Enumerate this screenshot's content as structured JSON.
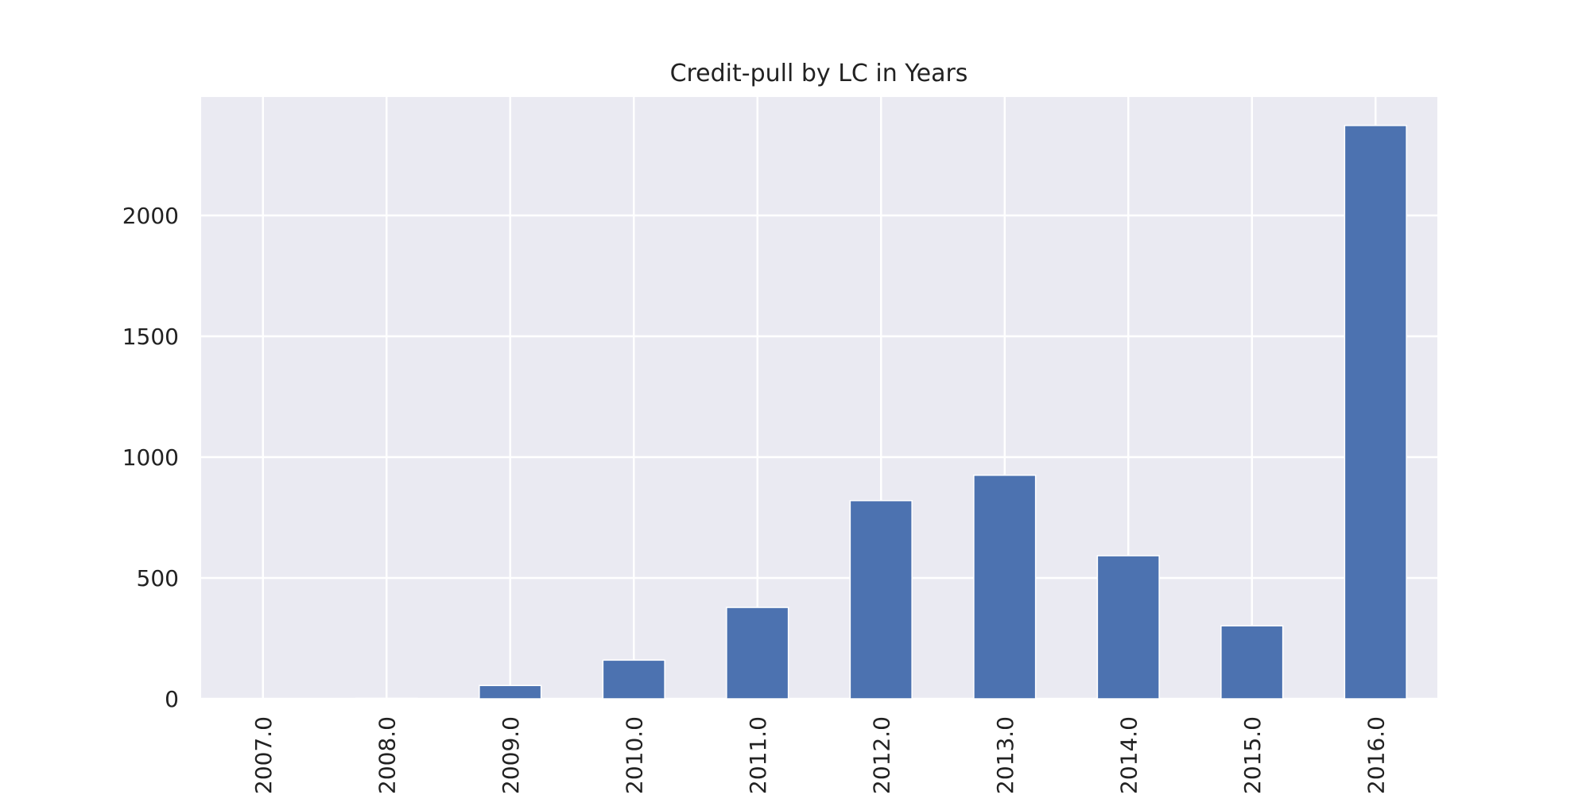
{
  "chart_data": {
    "type": "bar",
    "title": "Credit-pull by LC in Years",
    "xlabel": "",
    "ylabel": "",
    "categories": [
      "2007.0",
      "2008.0",
      "2009.0",
      "2010.0",
      "2011.0",
      "2012.0",
      "2013.0",
      "2014.0",
      "2015.0",
      "2016.0"
    ],
    "values": [
      1,
      2,
      55,
      160,
      378,
      820,
      925,
      592,
      302,
      2372
    ],
    "ylim": [
      0,
      2490
    ],
    "yticks": [
      0,
      500,
      1000,
      1500,
      2000
    ],
    "ytick_labels": [
      "0",
      "500",
      "1000",
      "1500",
      "2000"
    ],
    "grid": true,
    "legend": "none",
    "colors": {
      "bar": "#4c72b0",
      "plot_background": "#eaeaf2",
      "grid": "#ffffff",
      "text": "#222222"
    }
  }
}
